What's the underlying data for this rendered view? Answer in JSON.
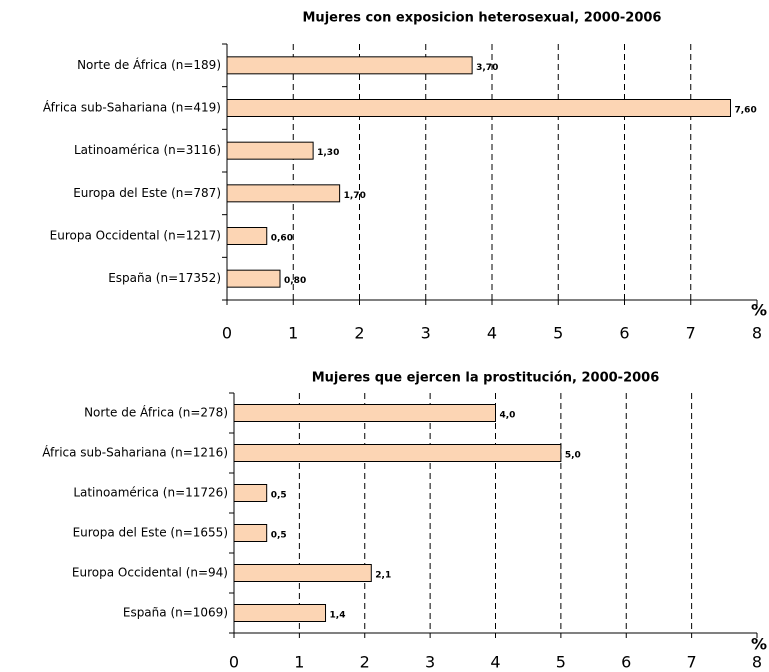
{
  "chart_data": [
    {
      "type": "bar",
      "orientation": "horizontal",
      "title": "Mujeres con exposicion heterosexual, 2000-2006",
      "categories": [
        "Norte de África (n=189)",
        "África sub-Sahariana (n=419)",
        "Latinoamérica (n=3116)",
        "Europa del Este (n=787)",
        "Europa Occidental (n=1217)",
        "España (n=17352)"
      ],
      "values": [
        3.7,
        7.6,
        1.3,
        1.7,
        0.6,
        0.8
      ],
      "value_labels": [
        "3,70",
        "7,60",
        "1,30",
        "1,70",
        "0,60",
        "0,80"
      ],
      "color": "#fcd5b4",
      "xlabel": "%",
      "xlim": [
        0,
        8
      ],
      "xticks": [
        0,
        1,
        2,
        3,
        4,
        5,
        6,
        7,
        8
      ],
      "grid": true
    },
    {
      "type": "bar",
      "orientation": "horizontal",
      "title": "Mujeres que ejercen la prostitución, 2000-2006",
      "categories": [
        "Norte de África (n=278)",
        "África sub-Sahariana (n=1216)",
        "Latinoamérica (n=11726)",
        "Europa del Este (n=1655)",
        "Europa Occidental (n=94)",
        "España (n=1069)"
      ],
      "values": [
        4.0,
        5.0,
        0.5,
        0.5,
        2.1,
        1.4
      ],
      "value_labels": [
        "4,0",
        "5,0",
        "0,5",
        "0,5",
        "2,1",
        "1,4"
      ],
      "color": "#fcd5b4",
      "xlabel": "%",
      "xlim": [
        0,
        8
      ],
      "xticks": [
        0,
        1,
        2,
        3,
        4,
        5,
        6,
        7,
        8
      ],
      "grid": true
    }
  ]
}
